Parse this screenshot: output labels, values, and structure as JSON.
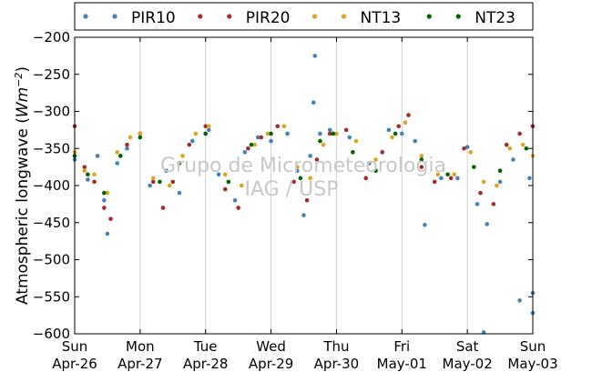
{
  "chart_data": {
    "type": "scatter",
    "title": "",
    "xlabel": "",
    "ylabel": "Atmospheric longwave (Wm⁻²)",
    "ylabel_parts": {
      "prefix": "Atmospheric longwave (",
      "unit": "Wm",
      "exp": "−2",
      "suffix": ")"
    },
    "xlim": [
      0,
      7
    ],
    "ylim": [
      -600,
      -200
    ],
    "yticks": [
      -200,
      -250,
      -300,
      -350,
      -400,
      -450,
      -500,
      -550,
      -600
    ],
    "ytick_labels": [
      "−200",
      "−250",
      "−300",
      "−350",
      "−400",
      "−450",
      "−500",
      "−550",
      "−600"
    ],
    "xticks": [
      0,
      1,
      2,
      3,
      4,
      5,
      6,
      7
    ],
    "xtick_labels": [
      [
        "Sun",
        "Apr-26"
      ],
      [
        "Mon",
        "Apr-27"
      ],
      [
        "Tue",
        "Apr-28"
      ],
      [
        "Wed",
        "Apr-29"
      ],
      [
        "Thu",
        "Apr-30"
      ],
      [
        "Fri",
        "May-01"
      ],
      [
        "Sat",
        "May-02"
      ],
      [
        "Sun",
        "May-03"
      ]
    ],
    "grid": "vertical",
    "legend_position": "top",
    "watermark": [
      "Grupo de Micrometeorologia",
      "IAG / USP"
    ],
    "series": [
      {
        "name": "PIR10",
        "color": "#4682b4",
        "points": [
          [
            0.0,
            -365
          ],
          [
            0.2,
            -392
          ],
          [
            0.35,
            -360
          ],
          [
            0.45,
            -420
          ],
          [
            0.5,
            -465
          ],
          [
            0.65,
            -370
          ],
          [
            0.8,
            -350
          ],
          [
            1.0,
            -330
          ],
          [
            1.15,
            -400
          ],
          [
            1.4,
            -380
          ],
          [
            1.6,
            -410
          ],
          [
            1.8,
            -340
          ],
          [
            2.05,
            -325
          ],
          [
            2.2,
            -385
          ],
          [
            2.45,
            -420
          ],
          [
            2.6,
            -355
          ],
          [
            2.8,
            -335
          ],
          [
            3.0,
            -340
          ],
          [
            3.25,
            -330
          ],
          [
            3.4,
            -380
          ],
          [
            3.5,
            -440
          ],
          [
            3.6,
            -360
          ],
          [
            3.67,
            -225
          ],
          [
            3.65,
            -288
          ],
          [
            3.75,
            -330
          ],
          [
            3.9,
            -325
          ],
          [
            4.2,
            -335
          ],
          [
            4.5,
            -370
          ],
          [
            4.8,
            -325
          ],
          [
            5.0,
            -330
          ],
          [
            5.2,
            -340
          ],
          [
            5.35,
            -453
          ],
          [
            5.6,
            -390
          ],
          [
            5.85,
            -390
          ],
          [
            6.0,
            -348
          ],
          [
            6.15,
            -425
          ],
          [
            6.3,
            -452
          ],
          [
            6.5,
            -395
          ],
          [
            6.25,
            -598
          ],
          [
            6.7,
            -365
          ],
          [
            6.8,
            -555
          ],
          [
            6.95,
            -390
          ],
          [
            7.0,
            -572
          ],
          [
            7.0,
            -545
          ]
        ]
      },
      {
        "name": "PIR20",
        "color": "#a52a2a",
        "points": [
          [
            0.0,
            -320
          ],
          [
            0.15,
            -375
          ],
          [
            0.3,
            -395
          ],
          [
            0.45,
            -430
          ],
          [
            0.55,
            -445
          ],
          [
            0.7,
            -360
          ],
          [
            0.8,
            -345
          ],
          [
            1.0,
            -330
          ],
          [
            1.2,
            -395
          ],
          [
            1.35,
            -430
          ],
          [
            1.5,
            -395
          ],
          [
            1.75,
            -345
          ],
          [
            2.0,
            -320
          ],
          [
            2.3,
            -405
          ],
          [
            2.5,
            -430
          ],
          [
            2.65,
            -350
          ],
          [
            2.85,
            -335
          ],
          [
            3.1,
            -320
          ],
          [
            3.35,
            -395
          ],
          [
            3.55,
            -420
          ],
          [
            3.7,
            -365
          ],
          [
            3.9,
            -330
          ],
          [
            4.15,
            -325
          ],
          [
            4.45,
            -390
          ],
          [
            4.7,
            -355
          ],
          [
            4.95,
            -320
          ],
          [
            5.1,
            -305
          ],
          [
            5.3,
            -375
          ],
          [
            5.5,
            -395
          ],
          [
            5.75,
            -390
          ],
          [
            5.95,
            -350
          ],
          [
            6.2,
            -410
          ],
          [
            6.4,
            -425
          ],
          [
            6.6,
            -345
          ],
          [
            6.8,
            -330
          ],
          [
            7.0,
            -320
          ]
        ]
      },
      {
        "name": "NT13",
        "color": "#daa520",
        "points": [
          [
            0.0,
            -355
          ],
          [
            0.15,
            -380
          ],
          [
            0.3,
            -385
          ],
          [
            0.5,
            -410
          ],
          [
            0.65,
            -355
          ],
          [
            0.85,
            -335
          ],
          [
            1.0,
            -330
          ],
          [
            1.2,
            -390
          ],
          [
            1.45,
            -400
          ],
          [
            1.65,
            -360
          ],
          [
            1.85,
            -330
          ],
          [
            2.05,
            -320
          ],
          [
            2.3,
            -385
          ],
          [
            2.55,
            -400
          ],
          [
            2.75,
            -345
          ],
          [
            2.95,
            -330
          ],
          [
            3.2,
            -320
          ],
          [
            3.4,
            -375
          ],
          [
            3.6,
            -390
          ],
          [
            3.8,
            -345
          ],
          [
            4.0,
            -330
          ],
          [
            4.3,
            -340
          ],
          [
            4.6,
            -365
          ],
          [
            4.85,
            -335
          ],
          [
            5.05,
            -315
          ],
          [
            5.3,
            -360
          ],
          [
            5.55,
            -385
          ],
          [
            5.8,
            -385
          ],
          [
            6.05,
            -355
          ],
          [
            6.25,
            -395
          ],
          [
            6.45,
            -400
          ],
          [
            6.65,
            -350
          ],
          [
            6.85,
            -345
          ],
          [
            7.0,
            -360
          ]
        ]
      },
      {
        "name": "NT23",
        "color": "#006400",
        "points": [
          [
            0.0,
            -360
          ],
          [
            0.2,
            -385
          ],
          [
            0.45,
            -410
          ],
          [
            0.7,
            -360
          ],
          [
            1.0,
            -335
          ],
          [
            1.3,
            -395
          ],
          [
            1.6,
            -370
          ],
          [
            2.0,
            -330
          ],
          [
            2.35,
            -395
          ],
          [
            2.7,
            -345
          ],
          [
            3.0,
            -330
          ],
          [
            3.45,
            -390
          ],
          [
            3.75,
            -340
          ],
          [
            3.95,
            -330
          ],
          [
            4.25,
            -355
          ],
          [
            4.6,
            -380
          ],
          [
            4.9,
            -330
          ],
          [
            5.3,
            -365
          ],
          [
            5.7,
            -385
          ],
          [
            6.1,
            -375
          ],
          [
            6.5,
            -380
          ],
          [
            6.9,
            -350
          ]
        ]
      }
    ]
  }
}
